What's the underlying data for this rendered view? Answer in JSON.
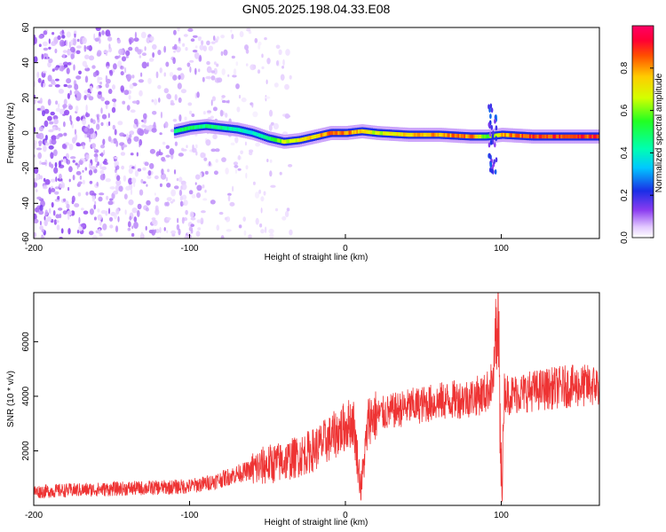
{
  "figure": {
    "title": "GN05.2025.198.04.33.E08"
  },
  "colorbar": {
    "label": "Normalized spectral amplitude",
    "ticks": [
      {
        "value": 0.0,
        "label": "0.0"
      },
      {
        "value": 0.2,
        "label": "0.2"
      },
      {
        "value": 0.4,
        "label": "0.4"
      },
      {
        "value": 0.6,
        "label": "0.6"
      },
      {
        "value": 0.8,
        "label": "0.8"
      }
    ],
    "range": [
      0,
      1
    ]
  },
  "chart_data": [
    {
      "type": "heatmap",
      "xlabel": "Height of straight line (km)",
      "ylabel": "Frequency (Hz)",
      "xlim": [
        -200,
        163
      ],
      "ylim": [
        -60,
        60
      ],
      "xticks": [
        {
          "value": -200,
          "label": "-200"
        },
        {
          "value": -100,
          "label": "-100"
        },
        {
          "value": 0,
          "label": "0"
        },
        {
          "value": 100,
          "label": "100"
        }
      ],
      "yticks": [
        {
          "value": -60,
          "label": "-60"
        },
        {
          "value": -40,
          "label": "-40"
        },
        {
          "value": -20,
          "label": "-20"
        },
        {
          "value": 0,
          "label": "0"
        },
        {
          "value": 20,
          "label": "20"
        },
        {
          "value": 40,
          "label": "40"
        },
        {
          "value": 60,
          "label": "60"
        }
      ],
      "ridge": {
        "x": [
          -110,
          -100,
          -90,
          -80,
          -70,
          -60,
          -50,
          -40,
          -30,
          -20,
          -10,
          0,
          10,
          20,
          40,
          60,
          80,
          90,
          100,
          120,
          140,
          163
        ],
        "frequency": [
          1,
          3,
          4,
          3,
          2,
          0,
          -3,
          -5,
          -4,
          -2,
          0,
          0,
          1,
          0,
          -1,
          -1,
          -2,
          -2,
          -1,
          -2,
          -2,
          -2
        ],
        "amplitude": [
          0.5,
          0.55,
          0.5,
          0.5,
          0.45,
          0.4,
          0.5,
          0.7,
          0.75,
          0.8,
          0.9,
          0.9,
          0.8,
          0.7,
          0.8,
          0.85,
          0.9,
          0.6,
          0.85,
          0.95,
          0.95,
          0.95
        ]
      },
      "noise_region": {
        "x_range": [
          -200,
          -55
        ],
        "level": 0.1
      },
      "colormap": "rainbow"
    },
    {
      "type": "line",
      "xlabel": "Height of straight line (km)",
      "ylabel": "SNR (10 * v/v)",
      "xlim": [
        -200,
        163
      ],
      "ylim": [
        0,
        7800
      ],
      "xticks": [
        {
          "value": -200,
          "label": "-200"
        },
        {
          "value": -100,
          "label": "-100"
        },
        {
          "value": 0,
          "label": "0"
        },
        {
          "value": 100,
          "label": "100"
        }
      ],
      "yticks": [
        {
          "value": 2000,
          "label": "2000"
        },
        {
          "value": 4000,
          "label": "4000"
        },
        {
          "value": 6000,
          "label": "6000"
        }
      ],
      "series": [
        {
          "color": "#ee3333",
          "x": [
            -200,
            -180,
            -160,
            -140,
            -120,
            -100,
            -90,
            -80,
            -70,
            -60,
            -50,
            -40,
            -30,
            -20,
            -10,
            0,
            5,
            10,
            15,
            20,
            40,
            60,
            80,
            90,
            95,
            98,
            100,
            102,
            105,
            110,
            120,
            140,
            163
          ],
          "y": [
            500,
            550,
            580,
            620,
            650,
            700,
            800,
            950,
            1150,
            1300,
            1500,
            1600,
            1800,
            2050,
            2450,
            2900,
            3100,
            600,
            3200,
            3300,
            3600,
            3800,
            3950,
            4100,
            4600,
            7700,
            200,
            4200,
            4050,
            4100,
            4200,
            4350,
            4400
          ]
        }
      ]
    }
  ]
}
